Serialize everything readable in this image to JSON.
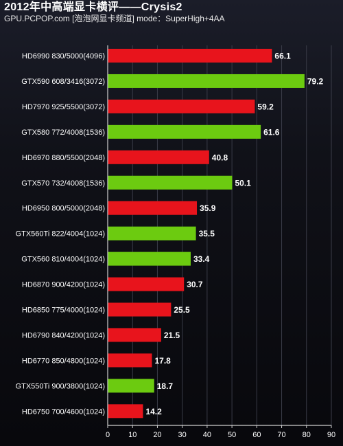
{
  "colors": {
    "amd": "#e8141c",
    "nvidia": "#6ccb10",
    "grid": "#3a3c48",
    "axis": "#d0d0d0"
  },
  "chart_data": {
    "type": "bar",
    "orientation": "horizontal",
    "title": "2012年中高端显卡横评——Crysis2",
    "subtitle": "GPU.PCPOP.com [泡泡网显卡频道] mode：SuperHigh+4AA",
    "categories": [
      "HD6990 830/5000(4096)",
      "GTX590 608/3416(3072)",
      "HD7970 925/5500(3072)",
      "GTX580 772/4008(1536)",
      "HD6970 880/5500(2048)",
      "GTX570 732/4008(1536)",
      "HD6950 800/5000(2048)",
      "GTX560Ti 822/4004(1024)",
      "GTX560 810/4004(1024)",
      "HD6870 900/4200(1024)",
      "HD6850 775/4000(1024)",
      "HD6790 840/4200(1024)",
      "HD6770 850/4800(1024)",
      "GTX550Ti 900/3800(1024)",
      "HD6750 700/4600(1024)"
    ],
    "values": [
      66.1,
      79.2,
      59.2,
      61.6,
      40.8,
      50.1,
      35.9,
      35.5,
      33.4,
      30.7,
      25.5,
      21.5,
      17.8,
      18.7,
      14.2
    ],
    "bar_colors": [
      "amd",
      "nvidia",
      "amd",
      "nvidia",
      "amd",
      "nvidia",
      "amd",
      "nvidia",
      "nvidia",
      "amd",
      "amd",
      "amd",
      "amd",
      "nvidia",
      "amd"
    ],
    "xlim": [
      0,
      90
    ],
    "xticks": [
      0,
      10,
      20,
      30,
      40,
      50,
      60,
      70,
      80,
      90
    ],
    "grid": true,
    "legend": "none"
  }
}
